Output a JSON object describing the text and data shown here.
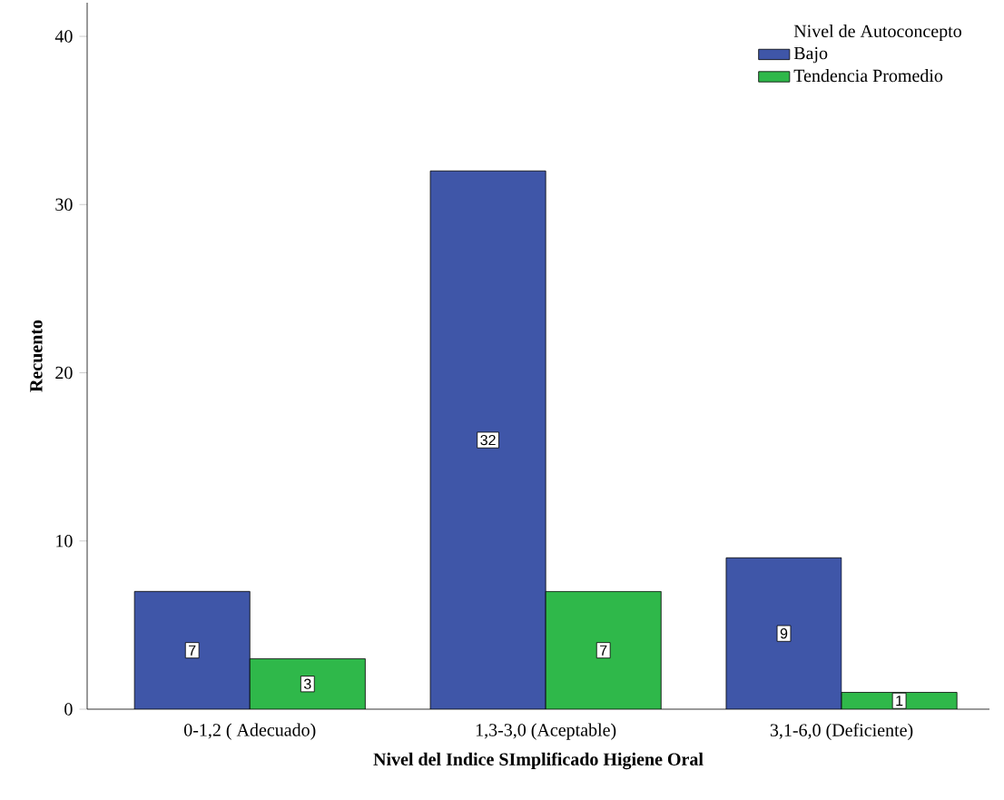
{
  "chart_data": {
    "type": "bar",
    "xlabel": "Nivel del Indice SImplificado Higiene Oral",
    "ylabel": "Recuento",
    "legend_title": "Nivel de Autoconcepto",
    "categories": [
      "0-1,2 ( Adecuado)",
      "1,3-3,0 (Aceptable)",
      "3,1-6,0 (Deficiente)"
    ],
    "series": [
      {
        "name": "Bajo",
        "color": "#3f56a8",
        "values": [
          7,
          32,
          9
        ]
      },
      {
        "name": "Tendencia Promedio",
        "color": "#2fb84a",
        "values": [
          3,
          7,
          1
        ]
      }
    ],
    "ylim": [
      0,
      42
    ],
    "yticks": [
      0,
      10,
      20,
      30,
      40
    ],
    "data_labels": true,
    "legend": "top right",
    "grid": false
  }
}
